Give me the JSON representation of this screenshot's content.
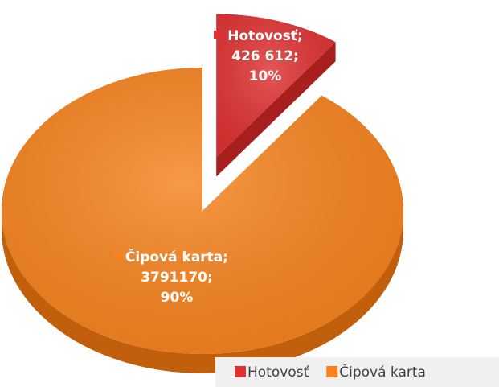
{
  "chart_data": {
    "type": "pie",
    "categories": [
      "Hotovosť",
      "Čipová karta"
    ],
    "values": [
      426612,
      3791170
    ],
    "value_labels": [
      "426 612",
      "3791170"
    ],
    "percents": [
      10,
      90
    ],
    "percent_labels": [
      "10%",
      "90%"
    ],
    "label_separator": ";",
    "colors": [
      "#e03131",
      "#f7831e"
    ],
    "side_colors": [
      "#a81f1f",
      "#c25f0c"
    ],
    "legend": "bottom-right",
    "explode": [
      1,
      0
    ]
  }
}
